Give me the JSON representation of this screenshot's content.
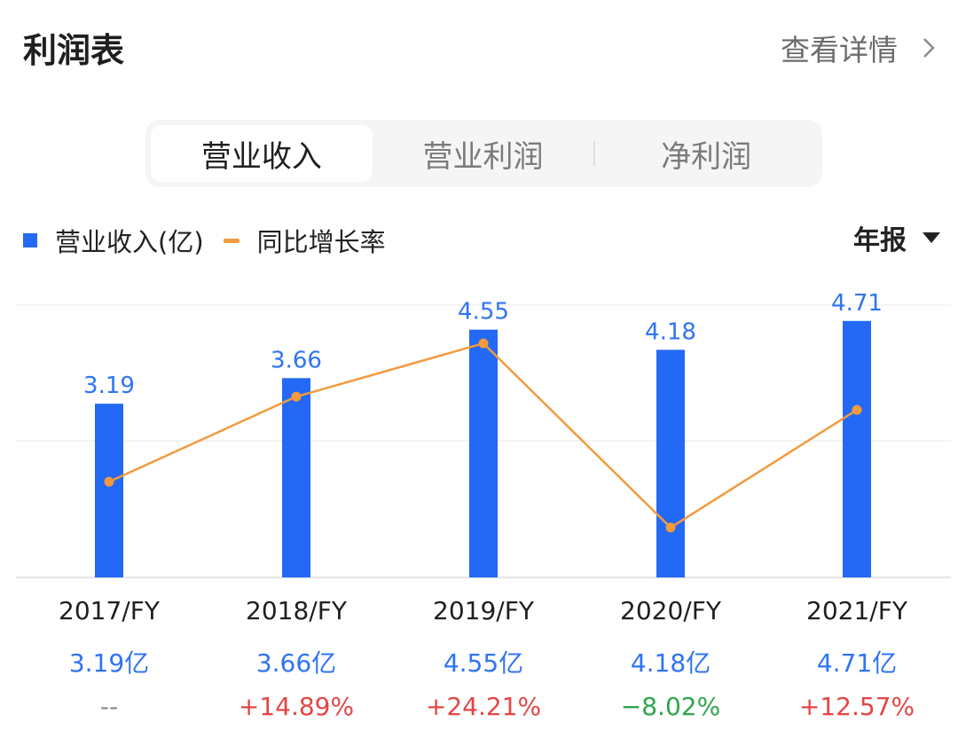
{
  "header": {
    "title": "利润表",
    "more_label": "查看详情"
  },
  "tabs": [
    {
      "label": "营业收入",
      "active": true
    },
    {
      "label": "营业利润",
      "active": false
    },
    {
      "label": "净利润",
      "active": false
    }
  ],
  "legend": {
    "bar_label": "营业收入(亿)",
    "line_label": "同比增长率"
  },
  "period_select": {
    "value": "年报"
  },
  "colors": {
    "bar": "#2369f5",
    "line": "#f39a3e",
    "value_text": "#2f74f6",
    "up": "#e54545",
    "down": "#2fa64c"
  },
  "chart_data": {
    "type": "bar",
    "categories": [
      "2017/FY",
      "2018/FY",
      "2019/FY",
      "2020/FY",
      "2021/FY"
    ],
    "series": [
      {
        "name": "营业收入(亿)",
        "type": "bar",
        "values": [
          3.19,
          3.66,
          4.55,
          4.18,
          4.71
        ]
      },
      {
        "name": "同比增长率",
        "type": "line",
        "values": [
          null,
          14.89,
          24.21,
          -8.02,
          12.57
        ]
      }
    ],
    "bar_labels": [
      "3.19",
      "3.66",
      "4.55",
      "4.18",
      "4.71"
    ],
    "grid": true,
    "legend_position": "top-left"
  },
  "table": {
    "years": [
      "2017/FY",
      "2018/FY",
      "2019/FY",
      "2020/FY",
      "2021/FY"
    ],
    "values": [
      "3.19亿",
      "3.66亿",
      "4.55亿",
      "4.18亿",
      "4.71亿"
    ],
    "growth": [
      {
        "text": "--",
        "trend": "none"
      },
      {
        "text": "+14.89%",
        "trend": "up"
      },
      {
        "text": "+24.21%",
        "trend": "up"
      },
      {
        "text": "−8.02%",
        "trend": "down"
      },
      {
        "text": "+12.57%",
        "trend": "up"
      }
    ]
  }
}
